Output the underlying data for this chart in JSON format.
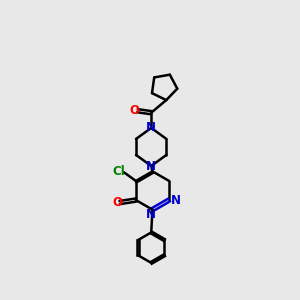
{
  "bg_color": "#e8e8e8",
  "bond_color": "#000000",
  "N_color": "#0000cc",
  "O_color": "#ff0000",
  "Cl_color": "#008000",
  "line_width": 1.8,
  "font_size": 8.5,
  "xlim": [
    0,
    10
  ],
  "ylim": [
    0,
    12
  ]
}
